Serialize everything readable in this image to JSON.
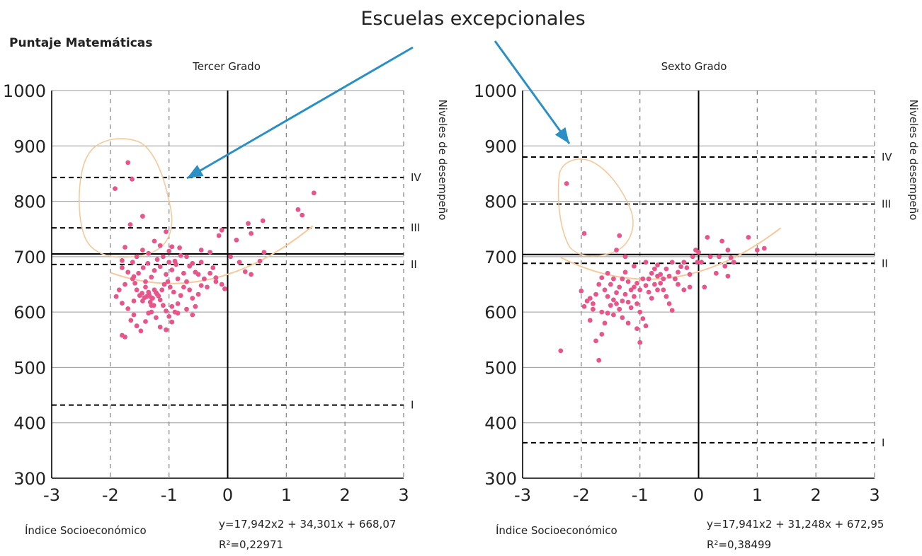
{
  "header": {
    "callout": "Escuelas excepcionales",
    "ylabel": "Puntaje Matemáticas"
  },
  "colors": {
    "accent": "#2a8fc4",
    "points": "#e8558a",
    "curve": "#f5c99a",
    "grid": "#8a8a8a",
    "axis": "#000000"
  },
  "chart_data": [
    {
      "type": "scatter",
      "title": "Tercer Grado",
      "xlabel": "Índice Socioeconómico",
      "equation": "y=17,942x2 + 34,301x + 668,07",
      "r2": "R²=0,22971",
      "right_label": "Niveles de desempeño",
      "xlim": [
        -3,
        3
      ],
      "ylim": [
        300,
        1000
      ],
      "xticks": [
        "-3",
        "-2",
        "-1",
        "0",
        "1",
        "2",
        "3"
      ],
      "yticks": [
        "300",
        "400",
        "500",
        "600",
        "700",
        "800",
        "900",
        "1000"
      ],
      "levels": [
        {
          "label": "IV",
          "value": 843
        },
        {
          "label": "III",
          "value": 752
        },
        {
          "label": "II",
          "value": 686
        },
        {
          "label": "I",
          "value": 432
        }
      ],
      "mean_line": 705,
      "fit": {
        "a": 17.942,
        "b": 34.301,
        "c": 668.07,
        "x_from": -2.0,
        "x_to": 1.45
      },
      "points": [
        [
          -1.7,
          870
        ],
        [
          -1.92,
          823
        ],
        [
          -1.63,
          840
        ],
        [
          -1.45,
          773
        ],
        [
          -1.66,
          758
        ],
        [
          -1.8,
          693
        ],
        [
          -1.75,
          717
        ],
        [
          -1.62,
          690
        ],
        [
          -1.55,
          700
        ],
        [
          -1.45,
          712
        ],
        [
          -1.35,
          706
        ],
        [
          -1.25,
          728
        ],
        [
          -1.15,
          720
        ],
        [
          -1.05,
          745
        ],
        [
          -1.1,
          700
        ],
        [
          -1.0,
          710
        ],
        [
          -0.9,
          692
        ],
        [
          -0.82,
          716
        ],
        [
          -0.7,
          700
        ],
        [
          -0.6,
          688
        ],
        [
          -0.45,
          712
        ],
        [
          -0.3,
          708
        ],
        [
          -0.15,
          738
        ],
        [
          -0.1,
          748
        ],
        [
          0.05,
          700
        ],
        [
          0.15,
          730
        ],
        [
          0.35,
          760
        ],
        [
          0.4,
          742
        ],
        [
          0.55,
          692
        ],
        [
          0.62,
          708
        ],
        [
          0.3,
          673
        ],
        [
          0.4,
          668
        ],
        [
          0.2,
          690
        ],
        [
          0.6,
          765
        ],
        [
          1.2,
          785
        ],
        [
          1.27,
          775
        ],
        [
          1.47,
          815
        ],
        [
          -0.95,
          718
        ],
        [
          -0.8,
          702
        ],
        [
          -0.2,
          655
        ],
        [
          -1.8,
          680
        ],
        [
          -1.7,
          672
        ],
        [
          -1.6,
          664
        ],
        [
          -1.75,
          650
        ],
        [
          -1.85,
          640
        ],
        [
          -1.9,
          628
        ],
        [
          -1.8,
          616
        ],
        [
          -1.7,
          606
        ],
        [
          -1.6,
          595
        ],
        [
          -1.65,
          585
        ],
        [
          -1.55,
          575
        ],
        [
          -1.48,
          566
        ],
        [
          -1.4,
          583
        ],
        [
          -1.35,
          598
        ],
        [
          -1.3,
          612
        ],
        [
          -1.45,
          620
        ],
        [
          -1.5,
          630
        ],
        [
          -1.55,
          640
        ],
        [
          -1.4,
          645
        ],
        [
          -1.35,
          636
        ],
        [
          -1.3,
          626
        ],
        [
          -1.25,
          640
        ],
        [
          -1.2,
          632
        ],
        [
          -1.15,
          622
        ],
        [
          -1.1,
          612
        ],
        [
          -1.05,
          602
        ],
        [
          -1.0,
          592
        ],
        [
          -0.95,
          582
        ],
        [
          -0.9,
          600
        ],
        [
          -0.85,
          615
        ],
        [
          -0.8,
          630
        ],
        [
          -0.75,
          645
        ],
        [
          -0.7,
          655
        ],
        [
          -0.65,
          640
        ],
        [
          -0.6,
          625
        ],
        [
          -0.55,
          610
        ],
        [
          -0.5,
          632
        ],
        [
          -0.45,
          648
        ],
        [
          -0.4,
          660
        ],
        [
          -0.35,
          645
        ],
        [
          -0.3,
          670
        ],
        [
          -0.25,
          680
        ],
        [
          -0.2,
          662
        ],
        [
          -0.1,
          650
        ],
        [
          -0.05,
          642
        ],
        [
          -1.3,
          663
        ],
        [
          -1.25,
          675
        ],
        [
          -1.15,
          682
        ],
        [
          -1.05,
          668
        ],
        [
          -0.95,
          676
        ],
        [
          -0.85,
          660
        ],
        [
          -0.75,
          670
        ],
        [
          -0.65,
          683
        ],
        [
          -0.55,
          672
        ],
        [
          -0.45,
          690
        ],
        [
          -1.38,
          628
        ],
        [
          -1.34,
          632
        ],
        [
          -1.28,
          625
        ],
        [
          -1.22,
          635
        ],
        [
          -1.18,
          629
        ],
        [
          -1.42,
          626
        ],
        [
          -1.46,
          634
        ],
        [
          -1.32,
          618
        ],
        [
          -1.26,
          612
        ],
        [
          -1.12,
          640
        ],
        [
          -1.08,
          650
        ],
        [
          -1.02,
          655
        ],
        [
          -0.98,
          645
        ],
        [
          -0.92,
          636
        ],
        [
          -1.58,
          652
        ],
        [
          -1.62,
          660
        ],
        [
          -1.52,
          670
        ],
        [
          -1.44,
          680
        ],
        [
          -1.36,
          688
        ],
        [
          -1.2,
          695
        ],
        [
          -1.0,
          690
        ],
        [
          -0.88,
          686
        ],
        [
          -1.3,
          600
        ],
        [
          -1.22,
          590
        ],
        [
          -1.15,
          573
        ],
        [
          -1.05,
          568
        ],
        [
          -0.95,
          610
        ],
        [
          -0.85,
          598
        ],
        [
          -0.7,
          605
        ],
        [
          -0.6,
          595
        ],
        [
          -1.75,
          555
        ],
        [
          -1.8,
          558
        ],
        [
          -1.6,
          620
        ],
        [
          -1.4,
          655
        ],
        [
          -0.5,
          668
        ]
      ]
    },
    {
      "type": "scatter",
      "title": "Sexto Grado",
      "xlabel": "Índice Socioeconómico",
      "equation": "y=17,941x2 + 31,248x + 672,95",
      "r2": "R²=0,38499",
      "right_label": "Niveles de desempeño",
      "xlim": [
        -3,
        3
      ],
      "ylim": [
        300,
        1000
      ],
      "xticks": [
        "-3",
        "-2",
        "-1",
        "0",
        "1",
        "2",
        "3"
      ],
      "yticks": [
        "300",
        "400",
        "500",
        "600",
        "700",
        "800",
        "900",
        "1000"
      ],
      "levels": [
        {
          "label": "IV",
          "value": 880
        },
        {
          "label": "III",
          "value": 795
        },
        {
          "label": "II",
          "value": 688
        },
        {
          "label": "I",
          "value": 364
        }
      ],
      "mean_line": 704,
      "fit": {
        "a": 17.941,
        "b": 31.248,
        "c": 672.95,
        "x_from": -2.35,
        "x_to": 1.4
      },
      "points": [
        [
          -2.25,
          832
        ],
        [
          -1.95,
          742
        ],
        [
          -1.35,
          738
        ],
        [
          -1.4,
          712
        ],
        [
          -2.35,
          530
        ],
        [
          -2.0,
          638
        ],
        [
          -1.9,
          620
        ],
        [
          -1.8,
          605
        ],
        [
          -1.85,
          585
        ],
        [
          -1.75,
          548
        ],
        [
          -1.7,
          513
        ],
        [
          -1.65,
          560
        ],
        [
          -1.6,
          580
        ],
        [
          -1.55,
          598
        ],
        [
          -1.5,
          612
        ],
        [
          -1.45,
          622
        ],
        [
          -1.4,
          635
        ],
        [
          -1.35,
          645
        ],
        [
          -1.3,
          660
        ],
        [
          -1.25,
          672
        ],
        [
          -1.2,
          655
        ],
        [
          -1.15,
          640
        ],
        [
          -1.1,
          628
        ],
        [
          -1.05,
          615
        ],
        [
          -1.0,
          600
        ],
        [
          -0.95,
          588
        ],
        [
          -0.9,
          575
        ],
        [
          -0.85,
          660
        ],
        [
          -0.8,
          670
        ],
        [
          -0.75,
          678
        ],
        [
          -0.7,
          665
        ],
        [
          -0.65,
          652
        ],
        [
          -0.6,
          640
        ],
        [
          -0.55,
          628
        ],
        [
          -0.5,
          615
        ],
        [
          -0.45,
          603
        ],
        [
          -0.4,
          660
        ],
        [
          -0.35,
          672
        ],
        [
          -0.3,
          682
        ],
        [
          -0.25,
          690
        ],
        [
          -0.2,
          680
        ],
        [
          -0.15,
          668
        ],
        [
          -0.1,
          700
        ],
        [
          -0.05,
          712
        ],
        [
          0.0,
          708
        ],
        [
          0.05,
          690
        ],
        [
          0.1,
          645
        ],
        [
          0.15,
          735
        ],
        [
          0.4,
          728
        ],
        [
          0.5,
          712
        ],
        [
          0.55,
          698
        ],
        [
          0.35,
          700
        ],
        [
          0.45,
          683
        ],
        [
          0.5,
          665
        ],
        [
          0.6,
          690
        ],
        [
          0.85,
          735
        ],
        [
          1.0,
          712
        ],
        [
          1.12,
          715
        ],
        [
          -1.7,
          650
        ],
        [
          -1.65,
          662
        ],
        [
          -1.6,
          640
        ],
        [
          -1.55,
          628
        ],
        [
          -1.75,
          632
        ],
        [
          -1.8,
          615
        ],
        [
          -1.5,
          650
        ],
        [
          -1.45,
          660
        ],
        [
          -1.4,
          615
        ],
        [
          -1.35,
          605
        ],
        [
          -1.3,
          620
        ],
        [
          -1.25,
          632
        ],
        [
          -1.2,
          618
        ],
        [
          -1.15,
          608
        ],
        [
          -1.1,
          645
        ],
        [
          -1.05,
          652
        ],
        [
          -1.0,
          640
        ],
        [
          -0.95,
          660
        ],
        [
          -0.9,
          648
        ],
        [
          -0.85,
          636
        ],
        [
          -0.8,
          625
        ],
        [
          -0.75,
          650
        ],
        [
          -0.7,
          640
        ],
        [
          -0.65,
          668
        ],
        [
          -0.6,
          660
        ],
        [
          -0.55,
          678
        ],
        [
          -0.5,
          665
        ],
        [
          -1.45,
          595
        ],
        [
          -1.3,
          590
        ],
        [
          -1.2,
          580
        ],
        [
          -1.05,
          570
        ],
        [
          -1.0,
          545
        ],
        [
          -1.65,
          600
        ],
        [
          -1.85,
          625
        ],
        [
          -1.95,
          610
        ],
        [
          -1.55,
          670
        ],
        [
          -1.25,
          700
        ],
        [
          -0.9,
          690
        ],
        [
          -0.7,
          685
        ],
        [
          -0.45,
          690
        ],
        [
          -0.35,
          650
        ],
        [
          -0.25,
          640
        ],
        [
          -1.1,
          683
        ],
        [
          -0.15,
          645
        ],
        [
          -0.02,
          690
        ],
        [
          0.2,
          700
        ],
        [
          0.3,
          670
        ]
      ]
    }
  ]
}
